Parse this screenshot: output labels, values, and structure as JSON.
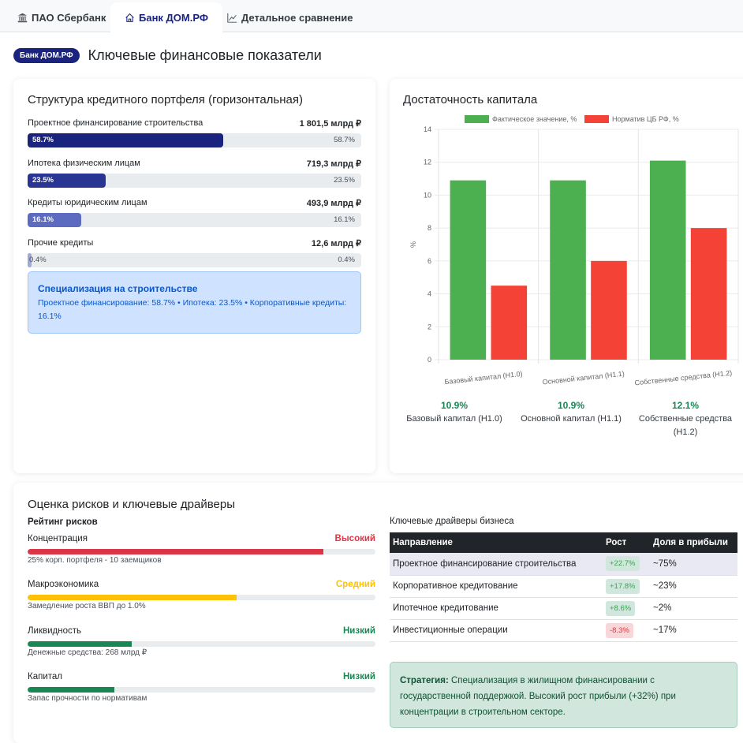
{
  "tabs": [
    {
      "label": "ПАО Сбербанк",
      "icon": "bank-icon",
      "active": false
    },
    {
      "label": "Банк ДОМ.РФ",
      "icon": "house-icon",
      "active": true
    },
    {
      "label": "Детальное сравнение",
      "icon": "line-chart-icon",
      "active": false
    }
  ],
  "header": {
    "badge": "Банк ДОМ.РФ",
    "title": "Ключевые финансовые показатели"
  },
  "portfolio": {
    "title": "Структура кредитного портфеля (горизонтальная)",
    "items": [
      {
        "label": "Проектное финансирование строительства",
        "amount": "1 801,5 млрд ₽",
        "percent": 58.7,
        "percent_text": "58.7%",
        "color": "#1a237e"
      },
      {
        "label": "Ипотека физическим лицам",
        "amount": "719,3 млрд ₽",
        "percent": 23.5,
        "percent_text": "23.5%",
        "color": "#283593"
      },
      {
        "label": "Кредиты юридическим лицам",
        "amount": "493,9 млрд ₽",
        "percent": 16.1,
        "percent_text": "16.1%",
        "color": "#5c6bc0"
      },
      {
        "label": "Прочие кредиты",
        "amount": "12,6 млрд ₽",
        "percent": 0.4,
        "percent_text": "0.4%",
        "color": "#9fa8da"
      }
    ],
    "info": {
      "title": "Специализация на строительстве",
      "text": "Проектное финансирование: 58.7% • Ипотека: 23.5% • Корпоративные кредиты: 16.1%"
    }
  },
  "capital": {
    "title": "Достаточность капитала",
    "summary": [
      {
        "value": "10.9%",
        "label": "Базовый капитал (Н1.0)"
      },
      {
        "value": "10.9%",
        "label": "Основной капитал (Н1.1)"
      },
      {
        "value": "12.1%",
        "label": "Собственные средства (Н1.2)"
      }
    ]
  },
  "chart_data": {
    "type": "bar",
    "title": "",
    "categories": [
      "Базовый капитал (Н1.0)",
      "Основной капитал (Н1.1)",
      "Собственные средства (Н1.2)"
    ],
    "series": [
      {
        "name": "Фактическое значение, %",
        "values": [
          10.9,
          10.9,
          12.1
        ],
        "color": "#4caf50"
      },
      {
        "name": "Норматив ЦБ РФ, %",
        "values": [
          4.5,
          6,
          8
        ],
        "color": "#f44336"
      }
    ],
    "xlabel": "",
    "ylabel": "%",
    "ylim": [
      0,
      14
    ],
    "yticks": [
      0,
      2,
      4,
      6,
      8,
      10,
      12,
      14
    ],
    "grid": true,
    "legend": "top"
  },
  "risks": {
    "title": "Оценка рисков и ключевые драйверы",
    "subtitle": "Рейтинг рисков",
    "items": [
      {
        "name": "Концентрация",
        "level": "Высокий",
        "level_color": "#dc3545",
        "fill": 85,
        "note": "25% корп. портфеля - 10 заемщиков"
      },
      {
        "name": "Макроэкономика",
        "level": "Средний",
        "level_color": "#ffc107",
        "fill": 60,
        "note": "Замедление роста ВВП до 1.0%"
      },
      {
        "name": "Ликвидность",
        "level": "Низкий",
        "level_color": "#198754",
        "fill": 30,
        "note": "Денежные средства: 268 млрд ₽"
      },
      {
        "name": "Капитал",
        "level": "Низкий",
        "level_color": "#198754",
        "fill": 25,
        "note": "Запас прочности по нормативам"
      }
    ]
  },
  "drivers": {
    "title": "Ключевые драйверы бизнеса",
    "columns": [
      "Направление",
      "Рост",
      "Доля в прибыли"
    ],
    "rows": [
      {
        "direction": "Проектное финансирование строительства",
        "growth": "+22.7%",
        "positive": true,
        "share": "~75%"
      },
      {
        "direction": "Корпоративное кредитование",
        "growth": "+17.8%",
        "positive": true,
        "share": "~23%"
      },
      {
        "direction": "Ипотечное кредитование",
        "growth": "+8.6%",
        "positive": true,
        "share": "~2%"
      },
      {
        "direction": "Инвестиционные операции",
        "growth": "-8.3%",
        "positive": false,
        "share": "~17%"
      }
    ],
    "strategy_label": "Стратегия:",
    "strategy_text": " Специализация в жилищном финансировании с государственной поддержкой. Высокий рост прибыли (+32%) при концентрации в строительном секторе."
  }
}
